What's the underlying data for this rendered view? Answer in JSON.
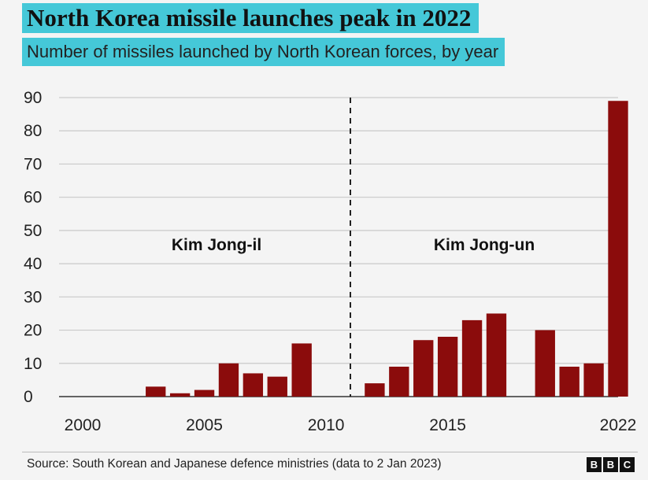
{
  "header": {
    "title": "North Korea missile launches peak in 2022",
    "subtitle": "Number of missiles launched by North Korean forces, by year"
  },
  "footer": {
    "source": "Source: South Korean and Japanese defence ministries (data to 2 Jan 2023)",
    "logo_letters": [
      "B",
      "B",
      "C"
    ]
  },
  "colors": {
    "bar": "#8b0c0c",
    "highlight_box": "#45c8d8",
    "grid": "#c9c9c9"
  },
  "chart_data": {
    "type": "bar",
    "title": "North Korea missile launches peak in 2022",
    "subtitle": "Number of missiles launched by North Korean forces, by year",
    "x": [
      2003,
      2004,
      2005,
      2006,
      2007,
      2008,
      2009,
      2012,
      2013,
      2014,
      2015,
      2016,
      2017,
      2019,
      2020,
      2021,
      2022
    ],
    "values": [
      3,
      1,
      2,
      10,
      7,
      6,
      16,
      4,
      9,
      17,
      18,
      23,
      25,
      20,
      9,
      10,
      89
    ],
    "xlim": [
      2000,
      2022
    ],
    "ylim": [
      0,
      90
    ],
    "xticks": [
      "2000",
      "2005",
      "2010",
      "2015",
      "2022"
    ],
    "yticks": [
      "0",
      "10",
      "20",
      "30",
      "40",
      "50",
      "60",
      "70",
      "80",
      "90"
    ],
    "xlabel": "",
    "ylabel": "",
    "grid": true,
    "legend": "none",
    "annotations": [
      {
        "text": "Kim Jong-il",
        "position": "left of divider"
      },
      {
        "text": "Kim Jong-un",
        "position": "right of divider"
      }
    ],
    "divider_year": 2011
  }
}
